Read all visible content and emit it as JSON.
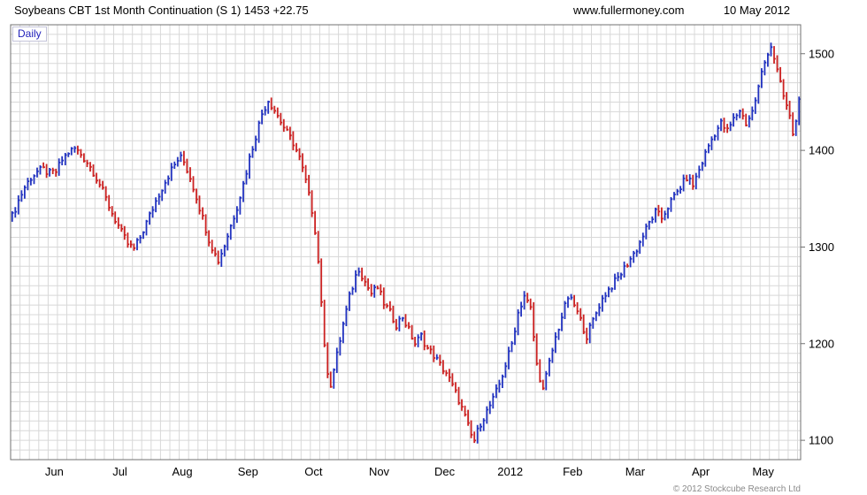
{
  "header": {
    "title": "Soybeans CBT 1st Month Continuation (S 1)",
    "last_price": "1453",
    "change": "+22.75",
    "website": "www.fullermoney.com",
    "date": "10 May 2012"
  },
  "chart": {
    "timeframe_label": "Daily",
    "copyright": "© 2012 Stockcube Research Ltd",
    "colors": {
      "up": "#2233c0",
      "down": "#cc2222",
      "grid": "#d8d8d8",
      "frame": "#707070",
      "axis_text": "#000000",
      "copyright_text": "#8a8a8a",
      "daily_label": "#2222bb"
    }
  },
  "chart_data": {
    "type": "ohlc-bar",
    "title": "Soybeans CBT 1st Month Continuation (S 1)",
    "subtitle": "Daily",
    "last_close": 1453,
    "change": 22.75,
    "y_ticks": [
      1100,
      1200,
      1300,
      1400,
      1500
    ],
    "y_range": [
      1080,
      1530
    ],
    "grid_step_price": 10,
    "grid_step_days": 3,
    "num_bars": 253,
    "x_labels": [
      {
        "label": "Jun",
        "day": 14
      },
      {
        "label": "Jul",
        "day": 35
      },
      {
        "label": "Aug",
        "day": 55
      },
      {
        "label": "Sep",
        "day": 76
      },
      {
        "label": "Oct",
        "day": 97
      },
      {
        "label": "Nov",
        "day": 118
      },
      {
        "label": "Dec",
        "day": 139
      },
      {
        "label": "2012",
        "day": 160
      },
      {
        "label": "Feb",
        "day": 180
      },
      {
        "label": "Mar",
        "day": 200
      },
      {
        "label": "Apr",
        "day": 221
      },
      {
        "label": "May",
        "day": 241
      }
    ],
    "anchors": [
      [
        0,
        1332
      ],
      [
        2,
        1348
      ],
      [
        4,
        1362
      ],
      [
        6,
        1372
      ],
      [
        8,
        1378
      ],
      [
        10,
        1380
      ],
      [
        12,
        1376
      ],
      [
        14,
        1378
      ],
      [
        16,
        1390
      ],
      [
        18,
        1398
      ],
      [
        20,
        1402
      ],
      [
        22,
        1396
      ],
      [
        24,
        1388
      ],
      [
        26,
        1378
      ],
      [
        28,
        1365
      ],
      [
        30,
        1350
      ],
      [
        32,
        1335
      ],
      [
        34,
        1322
      ],
      [
        35,
        1315
      ],
      [
        37,
        1303
      ],
      [
        39,
        1298
      ],
      [
        41,
        1310
      ],
      [
        43,
        1325
      ],
      [
        45,
        1340
      ],
      [
        47,
        1355
      ],
      [
        49,
        1368
      ],
      [
        51,
        1380
      ],
      [
        53,
        1390
      ],
      [
        54,
        1392
      ],
      [
        55,
        1388
      ],
      [
        57,
        1372
      ],
      [
        59,
        1352
      ],
      [
        61,
        1330
      ],
      [
        63,
        1308
      ],
      [
        65,
        1292
      ],
      [
        66,
        1286
      ],
      [
        68,
        1302
      ],
      [
        70,
        1322
      ],
      [
        72,
        1342
      ],
      [
        74,
        1365
      ],
      [
        76,
        1392
      ],
      [
        78,
        1415
      ],
      [
        80,
        1438
      ],
      [
        82,
        1452
      ],
      [
        84,
        1442
      ],
      [
        86,
        1430
      ],
      [
        88,
        1418
      ],
      [
        90,
        1408
      ],
      [
        92,
        1392
      ],
      [
        94,
        1368
      ],
      [
        96,
        1338
      ],
      [
        97,
        1318
      ],
      [
        98,
        1285
      ],
      [
        99,
        1245
      ],
      [
        100,
        1195
      ],
      [
        101,
        1172
      ],
      [
        102,
        1158
      ],
      [
        104,
        1188
      ],
      [
        106,
        1220
      ],
      [
        108,
        1248
      ],
      [
        110,
        1270
      ],
      [
        111,
        1278
      ],
      [
        113,
        1264
      ],
      [
        115,
        1252
      ],
      [
        117,
        1258
      ],
      [
        119,
        1242
      ],
      [
        121,
        1232
      ],
      [
        123,
        1220
      ],
      [
        125,
        1228
      ],
      [
        127,
        1214
      ],
      [
        129,
        1200
      ],
      [
        131,
        1208
      ],
      [
        133,
        1195
      ],
      [
        135,
        1188
      ],
      [
        137,
        1178
      ],
      [
        139,
        1170
      ],
      [
        141,
        1156
      ],
      [
        143,
        1142
      ],
      [
        145,
        1124
      ],
      [
        147,
        1105
      ],
      [
        148,
        1100
      ],
      [
        150,
        1118
      ],
      [
        152,
        1130
      ],
      [
        154,
        1142
      ],
      [
        156,
        1158
      ],
      [
        158,
        1178
      ],
      [
        160,
        1200
      ],
      [
        162,
        1232
      ],
      [
        164,
        1250
      ],
      [
        166,
        1236
      ],
      [
        168,
        1178
      ],
      [
        170,
        1152
      ],
      [
        172,
        1180
      ],
      [
        174,
        1206
      ],
      [
        176,
        1228
      ],
      [
        178,
        1248
      ],
      [
        180,
        1240
      ],
      [
        182,
        1224
      ],
      [
        184,
        1208
      ],
      [
        186,
        1224
      ],
      [
        188,
        1240
      ],
      [
        190,
        1252
      ],
      [
        192,
        1260
      ],
      [
        194,
        1268
      ],
      [
        196,
        1278
      ],
      [
        198,
        1288
      ],
      [
        200,
        1298
      ],
      [
        202,
        1312
      ],
      [
        204,
        1325
      ],
      [
        206,
        1336
      ],
      [
        208,
        1330
      ],
      [
        210,
        1342
      ],
      [
        212,
        1352
      ],
      [
        214,
        1362
      ],
      [
        216,
        1372
      ],
      [
        218,
        1364
      ],
      [
        220,
        1380
      ],
      [
        221,
        1388
      ],
      [
        223,
        1405
      ],
      [
        225,
        1418
      ],
      [
        227,
        1428
      ],
      [
        229,
        1420
      ],
      [
        231,
        1432
      ],
      [
        233,
        1442
      ],
      [
        235,
        1428
      ],
      [
        237,
        1440
      ],
      [
        239,
        1465
      ],
      [
        240,
        1480
      ],
      [
        242,
        1502
      ],
      [
        243,
        1508
      ],
      [
        244,
        1496
      ],
      [
        245,
        1482
      ],
      [
        246,
        1468
      ],
      [
        247,
        1456
      ],
      [
        248,
        1446
      ],
      [
        249,
        1434
      ],
      [
        250,
        1418
      ],
      [
        251,
        1430.25
      ],
      [
        252,
        1453
      ]
    ],
    "exact_last": {
      "prev_close": 1430.25,
      "close": 1453
    },
    "jitter": {
      "close_amp": 4,
      "range_amp": 4
    }
  }
}
